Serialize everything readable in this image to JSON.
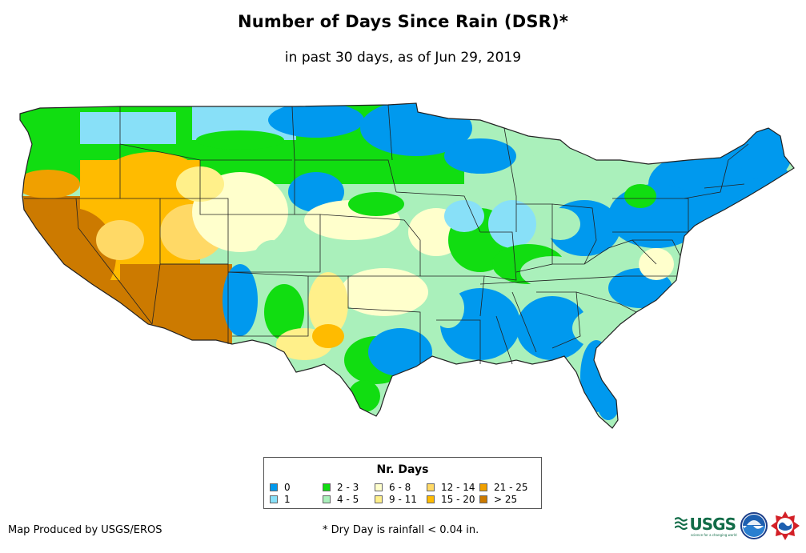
{
  "header": {
    "title": "Number of Days Since Rain (DSR)*",
    "subtitle": "in past 30 days, as of Jun 29, 2019"
  },
  "legend": {
    "title": "Nr. Days",
    "items": [
      {
        "label": "0",
        "color": "#0099ee"
      },
      {
        "label": "1",
        "color": "#88e0f8"
      },
      {
        "label": "2 - 3",
        "color": "#11dd11"
      },
      {
        "label": "4 - 5",
        "color": "#aaf0bb"
      },
      {
        "label": "6 - 8",
        "color": "#ffffcc"
      },
      {
        "label": "9 - 11",
        "color": "#fff08a"
      },
      {
        "label": "12 - 14",
        "color": "#ffd966"
      },
      {
        "label": "15 - 20",
        "color": "#ffbb00"
      },
      {
        "label": "21 - 25",
        "color": "#f0a000"
      },
      {
        "label": "> 25",
        "color": "#cc7a00"
      }
    ]
  },
  "map": {
    "region": "Contiguous United States",
    "boundary_color": "#222222"
  },
  "footer": {
    "producer": "Map Produced by USGS/EROS",
    "note": "* Dry Day is rainfall < 0.04 in."
  },
  "logos": [
    {
      "name": "usgs-logo",
      "text": "USGS",
      "tagline": "science for a changing world",
      "color": "#126c48"
    },
    {
      "name": "noaa-logo",
      "icon": "noaa-emblem"
    },
    {
      "name": "nws-logo",
      "icon": "national-weather-service-emblem"
    }
  ]
}
